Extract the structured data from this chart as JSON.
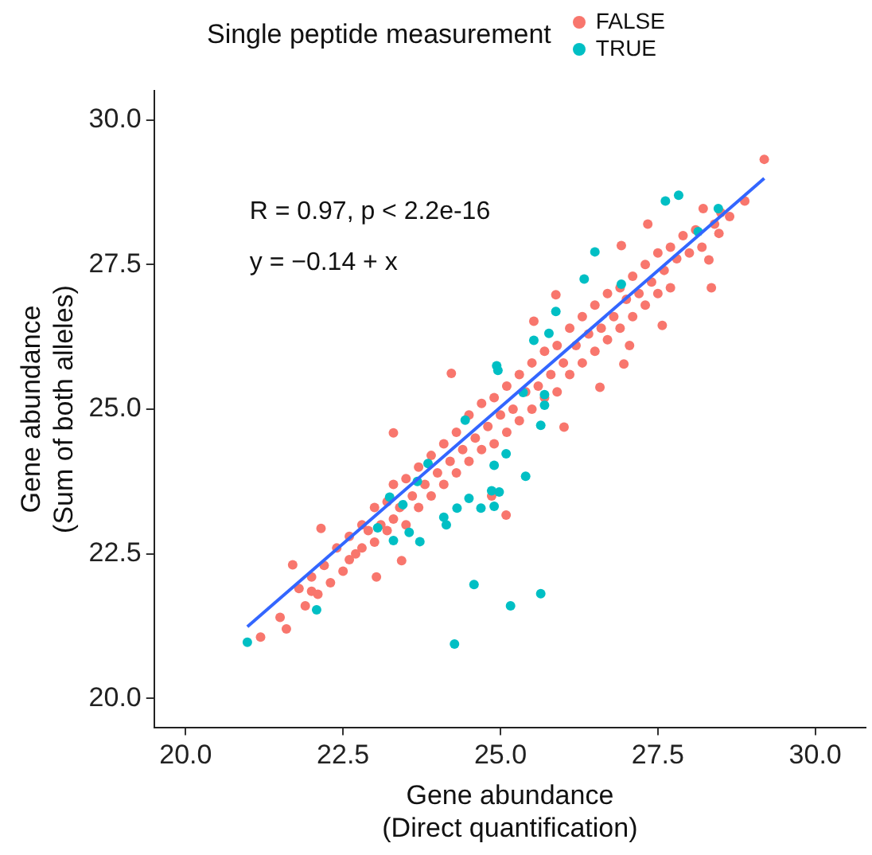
{
  "chart_data": {
    "type": "scatter",
    "legend_title": "Single peptide measurement",
    "legend": "top",
    "marker": "circle",
    "grid": false,
    "xlabel": "Gene abundance\n(Direct quantification)",
    "ylabel": "Gene abundance\n(Sum of both alleles)",
    "xlim": [
      19.5,
      30.8
    ],
    "ylim": [
      19.5,
      30.5
    ],
    "xticks": [
      {
        "value": 20,
        "label": "20.0"
      },
      22.5,
      {
        "value": 25,
        "label": "25.0"
      },
      27.5,
      {
        "value": 30,
        "label": "30.0"
      }
    ],
    "yticks": [
      {
        "value": 20,
        "label": "20.0"
      },
      22.5,
      {
        "value": 25,
        "label": "25.0"
      },
      27.5,
      {
        "value": 30,
        "label": "30.0"
      }
    ],
    "annotations": [
      "R = 0.97, p < 2.2e-16",
      "y = −0.14 + x"
    ],
    "series": [
      {
        "name": "FALSE",
        "color": "#f8766d",
        "x": [
          29.19,
          28.88,
          28.35,
          28.31,
          27.57,
          27.05,
          26.96,
          26.58,
          26.01,
          25.09,
          24.86,
          23.03,
          23.43,
          22.0,
          21.19,
          21.7,
          22.15,
          23.3,
          24.22,
          25.53,
          25.88,
          26.92,
          27.34,
          28.22,
          28.64,
          28.47,
          21.5,
          21.6,
          21.8,
          21.9,
          22.0,
          22.1,
          22.2,
          22.3,
          22.4,
          22.5,
          22.6,
          22.6,
          22.7,
          22.8,
          22.8,
          22.9,
          23.0,
          23.0,
          23.1,
          23.2,
          23.2,
          23.3,
          23.3,
          23.4,
          23.5,
          23.5,
          23.6,
          23.7,
          23.7,
          23.8,
          23.9,
          23.9,
          24.0,
          24.1,
          24.1,
          24.2,
          24.3,
          24.3,
          24.4,
          24.5,
          24.5,
          24.6,
          24.7,
          24.7,
          24.8,
          24.9,
          24.9,
          25.0,
          25.1,
          25.1,
          25.2,
          25.3,
          25.3,
          25.4,
          25.5,
          25.5,
          25.6,
          25.7,
          25.7,
          25.8,
          25.9,
          25.9,
          26.0,
          26.1,
          26.1,
          26.2,
          26.3,
          26.3,
          26.4,
          26.5,
          26.5,
          26.6,
          26.7,
          26.7,
          26.8,
          26.9,
          26.9,
          27.0,
          27.1,
          27.1,
          27.2,
          27.3,
          27.3,
          27.4,
          27.5,
          27.5,
          27.6,
          27.7,
          27.7,
          27.8,
          27.9,
          28.0,
          28.1,
          28.2,
          28.4,
          28.5
        ],
        "values": [
          29.32,
          28.6,
          27.1,
          27.58,
          26.45,
          26.1,
          25.78,
          25.38,
          24.69,
          23.17,
          23.5,
          22.1,
          22.38,
          21.85,
          21.06,
          22.31,
          22.94,
          24.59,
          25.62,
          26.52,
          26.98,
          27.83,
          28.2,
          28.47,
          28.33,
          28.04,
          21.4,
          21.2,
          21.9,
          21.6,
          22.1,
          21.8,
          22.3,
          22.0,
          22.6,
          22.2,
          22.8,
          22.4,
          22.5,
          23.0,
          22.6,
          22.9,
          23.3,
          22.7,
          23.0,
          23.4,
          22.9,
          23.7,
          23.1,
          23.3,
          23.8,
          23.0,
          23.5,
          24.0,
          23.3,
          23.7,
          24.2,
          23.5,
          23.9,
          24.4,
          23.7,
          24.1,
          24.6,
          23.9,
          24.3,
          24.9,
          24.1,
          24.5,
          25.1,
          24.3,
          24.7,
          25.2,
          24.4,
          24.9,
          25.4,
          24.6,
          25.0,
          25.6,
          24.8,
          25.3,
          25.8,
          25.0,
          25.4,
          26.0,
          25.2,
          25.6,
          26.1,
          25.3,
          25.8,
          26.4,
          25.6,
          26.1,
          26.6,
          25.8,
          26.3,
          26.8,
          26.0,
          26.4,
          27.0,
          26.2,
          26.6,
          27.1,
          26.4,
          26.9,
          27.3,
          26.6,
          27.0,
          27.5,
          26.8,
          27.2,
          27.7,
          27.0,
          27.4,
          27.8,
          27.1,
          27.6,
          28.0,
          27.7,
          28.1,
          27.8,
          28.2,
          28.4
        ]
      },
      {
        "name": "TRUE",
        "color": "#00bfc4",
        "x": [
          20.98,
          22.08,
          24.27,
          24.58,
          25.16,
          25.64,
          25.4,
          23.3,
          23.72,
          23.55,
          23.05,
          24.1,
          24.14,
          24.31,
          24.5,
          24.69,
          24.9,
          24.86,
          24.98,
          24.9,
          25.09,
          25.64,
          25.7,
          25.7,
          24.94,
          24.96,
          25.53,
          25.77,
          25.88,
          26.33,
          26.5,
          26.92,
          27.62,
          27.83,
          28.14,
          28.46,
          23.85,
          23.68,
          24.44,
          25.36,
          23.45,
          23.24
        ],
        "values": [
          20.97,
          21.53,
          20.94,
          21.97,
          21.6,
          21.81,
          23.84,
          22.73,
          22.71,
          22.87,
          22.95,
          23.13,
          23.0,
          23.29,
          23.46,
          23.29,
          23.32,
          23.59,
          23.57,
          24.03,
          24.23,
          24.72,
          25.07,
          25.25,
          25.75,
          25.67,
          26.19,
          26.31,
          26.69,
          27.25,
          27.72,
          27.16,
          28.6,
          28.7,
          28.07,
          28.47,
          24.06,
          23.75,
          24.81,
          25.29,
          23.35,
          23.48
        ]
      },
      {
        "type": "line",
        "marker": "none",
        "color": "#3366ff",
        "x": [
          20.98,
          29.19
        ],
        "values": [
          21.24,
          28.99
        ]
      }
    ]
  }
}
